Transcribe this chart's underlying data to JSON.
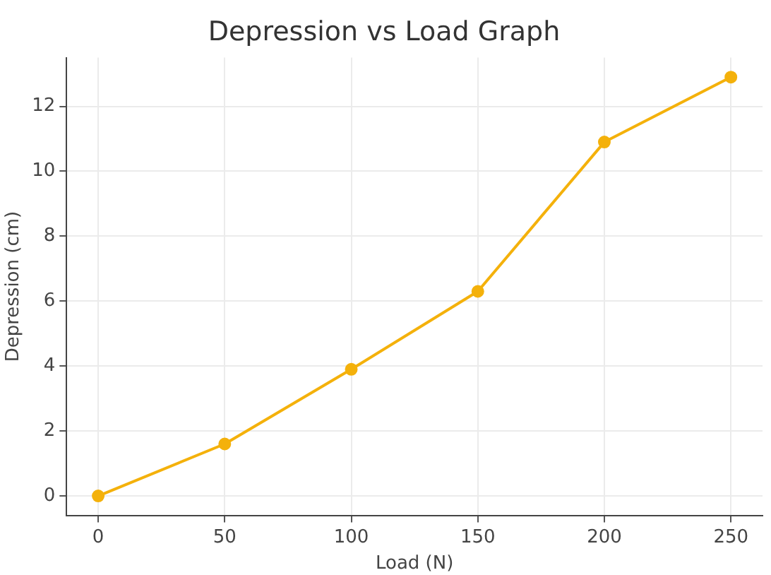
{
  "chart_data": {
    "type": "line",
    "title": "Depression vs Load Graph",
    "xlabel": "Load (N)",
    "ylabel": "Depression (cm)",
    "x": [
      0,
      50,
      100,
      150,
      200,
      250
    ],
    "series": [
      {
        "color": "#f4b10b",
        "values": [
          0,
          1.6,
          3.9,
          6.3,
          10.9,
          12.9
        ]
      }
    ],
    "xlim": [
      -12.5,
      262.5
    ],
    "xticks": [
      0,
      50,
      100,
      150,
      200,
      250
    ],
    "ylim": [
      -0.6,
      13.5
    ],
    "yticks": [
      0,
      2,
      4,
      6,
      8,
      10,
      12
    ],
    "grid": true,
    "marker": "circle",
    "line_style": "solid",
    "legend": false
  }
}
